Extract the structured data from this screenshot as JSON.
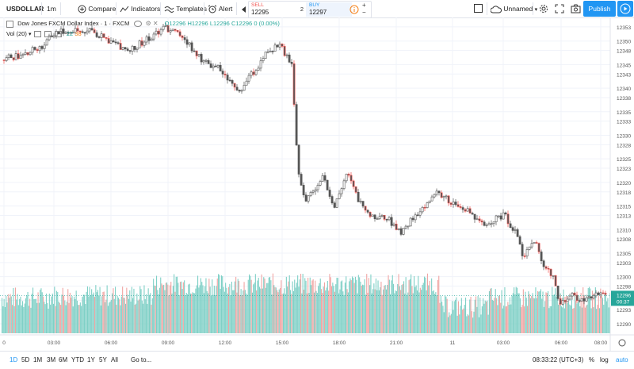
{
  "toolbar": {
    "symbol": "USDOLLAR",
    "interval": "1m",
    "compare": "Compare",
    "indicators": "Indicators",
    "templates": "Templates",
    "alert": "Alert",
    "sell_label": "SELL",
    "sell_price": "12295",
    "spread": "2",
    "buy_label": "BUY",
    "buy_price": "12297",
    "layout_name": "Unnamed",
    "publish": "Publish"
  },
  "legend": {
    "title": "Dow Jones FXCM Dollar Index · 1 · FXCM",
    "open": "O12296",
    "high": "H12296",
    "low": "L12296",
    "close": "C12296",
    "change": "0 (0.00%)",
    "vol_label": "Vol (20)",
    "vol_value_1": "22",
    "vol_value_2": "38"
  },
  "bottom": {
    "ranges": [
      "1D",
      "5D",
      "1M",
      "3M",
      "6M",
      "YTD",
      "1Y",
      "5Y",
      "All"
    ],
    "goto": "Go to...",
    "clock": "08:33:22 (UTC+3)",
    "pct": "%",
    "log": "log",
    "auto": "auto"
  },
  "colors": {
    "up": "#26a69a",
    "down": "#ef5350",
    "accent": "#2196f3",
    "last_price_bg": "#26a69a",
    "volume_up": "#7fd0c6",
    "volume_down": "#f0a5a3"
  },
  "chart_data": {
    "type": "candlestick",
    "y_ticks": [
      12290,
      12293,
      12295,
      12298,
      12300,
      12303,
      12305,
      12308,
      12310,
      12313,
      12315,
      12318,
      12320,
      12323,
      12325,
      12328,
      12330,
      12333,
      12335,
      12338,
      12340,
      12343,
      12345,
      12348,
      12350,
      12353
    ],
    "ylim": [
      12289,
      12355
    ],
    "x_ticks": [
      "0",
      "03:00",
      "06:00",
      "09:00",
      "12:00",
      "15:00",
      "18:00",
      "21:00",
      "11",
      "03:00",
      "06:00",
      "08:00"
    ],
    "last_price": "12296",
    "countdown": "00:37",
    "path": [
      [
        0,
        12346
      ],
      [
        0.03,
        12347
      ],
      [
        0.07,
        12349
      ],
      [
        0.09,
        12352
      ],
      [
        0.15,
        12352
      ],
      [
        0.18,
        12350
      ],
      [
        0.21,
        12348
      ],
      [
        0.25,
        12351
      ],
      [
        0.27,
        12353
      ],
      [
        0.3,
        12351
      ],
      [
        0.33,
        12346
      ],
      [
        0.36,
        12344
      ],
      [
        0.39,
        12339
      ],
      [
        0.42,
        12344
      ],
      [
        0.44,
        12348
      ],
      [
        0.46,
        12349
      ],
      [
        0.48,
        12345
      ],
      [
        0.485,
        12330
      ],
      [
        0.49,
        12323
      ],
      [
        0.5,
        12316
      ],
      [
        0.53,
        12321
      ],
      [
        0.55,
        12315
      ],
      [
        0.57,
        12322
      ],
      [
        0.59,
        12316
      ],
      [
        0.61,
        12313
      ],
      [
        0.64,
        12312
      ],
      [
        0.66,
        12309
      ],
      [
        0.68,
        12313
      ],
      [
        0.7,
        12315
      ],
      [
        0.72,
        12318
      ],
      [
        0.75,
        12315
      ],
      [
        0.77,
        12314
      ],
      [
        0.79,
        12311
      ],
      [
        0.81,
        12312
      ],
      [
        0.83,
        12313
      ],
      [
        0.85,
        12309
      ],
      [
        0.86,
        12304
      ],
      [
        0.88,
        12308
      ],
      [
        0.89,
        12303
      ],
      [
        0.91,
        12300
      ],
      [
        0.92,
        12294
      ],
      [
        0.94,
        12296
      ],
      [
        0.96,
        12295
      ],
      [
        0.98,
        12296
      ],
      [
        1.0,
        12296
      ]
    ]
  }
}
